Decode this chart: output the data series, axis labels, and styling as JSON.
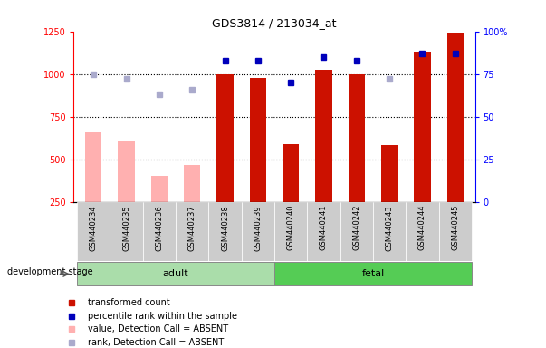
{
  "title": "GDS3814 / 213034_at",
  "samples": [
    "GSM440234",
    "GSM440235",
    "GSM440236",
    "GSM440237",
    "GSM440238",
    "GSM440239",
    "GSM440240",
    "GSM440241",
    "GSM440242",
    "GSM440243",
    "GSM440244",
    "GSM440245"
  ],
  "transformed_count": [
    null,
    null,
    null,
    null,
    1000,
    975,
    590,
    1025,
    1000,
    585,
    1130,
    1240
  ],
  "absent_value": [
    660,
    605,
    400,
    465,
    null,
    null,
    null,
    null,
    null,
    null,
    null,
    null
  ],
  "percentile_rank": [
    null,
    null,
    null,
    null,
    83,
    83,
    70,
    85,
    83,
    null,
    87,
    87
  ],
  "absent_rank": [
    75,
    72,
    63,
    66,
    null,
    null,
    null,
    null,
    null,
    72,
    null,
    null
  ],
  "ylim_left": [
    250,
    1250
  ],
  "ylim_right": [
    0,
    100
  ],
  "yticks_left": [
    250,
    500,
    750,
    1000,
    1250
  ],
  "yticks_right": [
    0,
    25,
    50,
    75,
    100
  ],
  "bar_color_present": "#CC1100",
  "bar_color_absent": "#FFB0B0",
  "dot_color_present": "#0000BB",
  "dot_color_absent": "#AAAACC",
  "group_label": "development stage",
  "adult_color": "#AADDAA",
  "fetal_color": "#55CC55",
  "legend_items": [
    {
      "label": "transformed count",
      "color": "#CC1100"
    },
    {
      "label": "percentile rank within the sample",
      "color": "#0000BB"
    },
    {
      "label": "value, Detection Call = ABSENT",
      "color": "#FFB0B0"
    },
    {
      "label": "rank, Detection Call = ABSENT",
      "color": "#AAAACC"
    }
  ]
}
